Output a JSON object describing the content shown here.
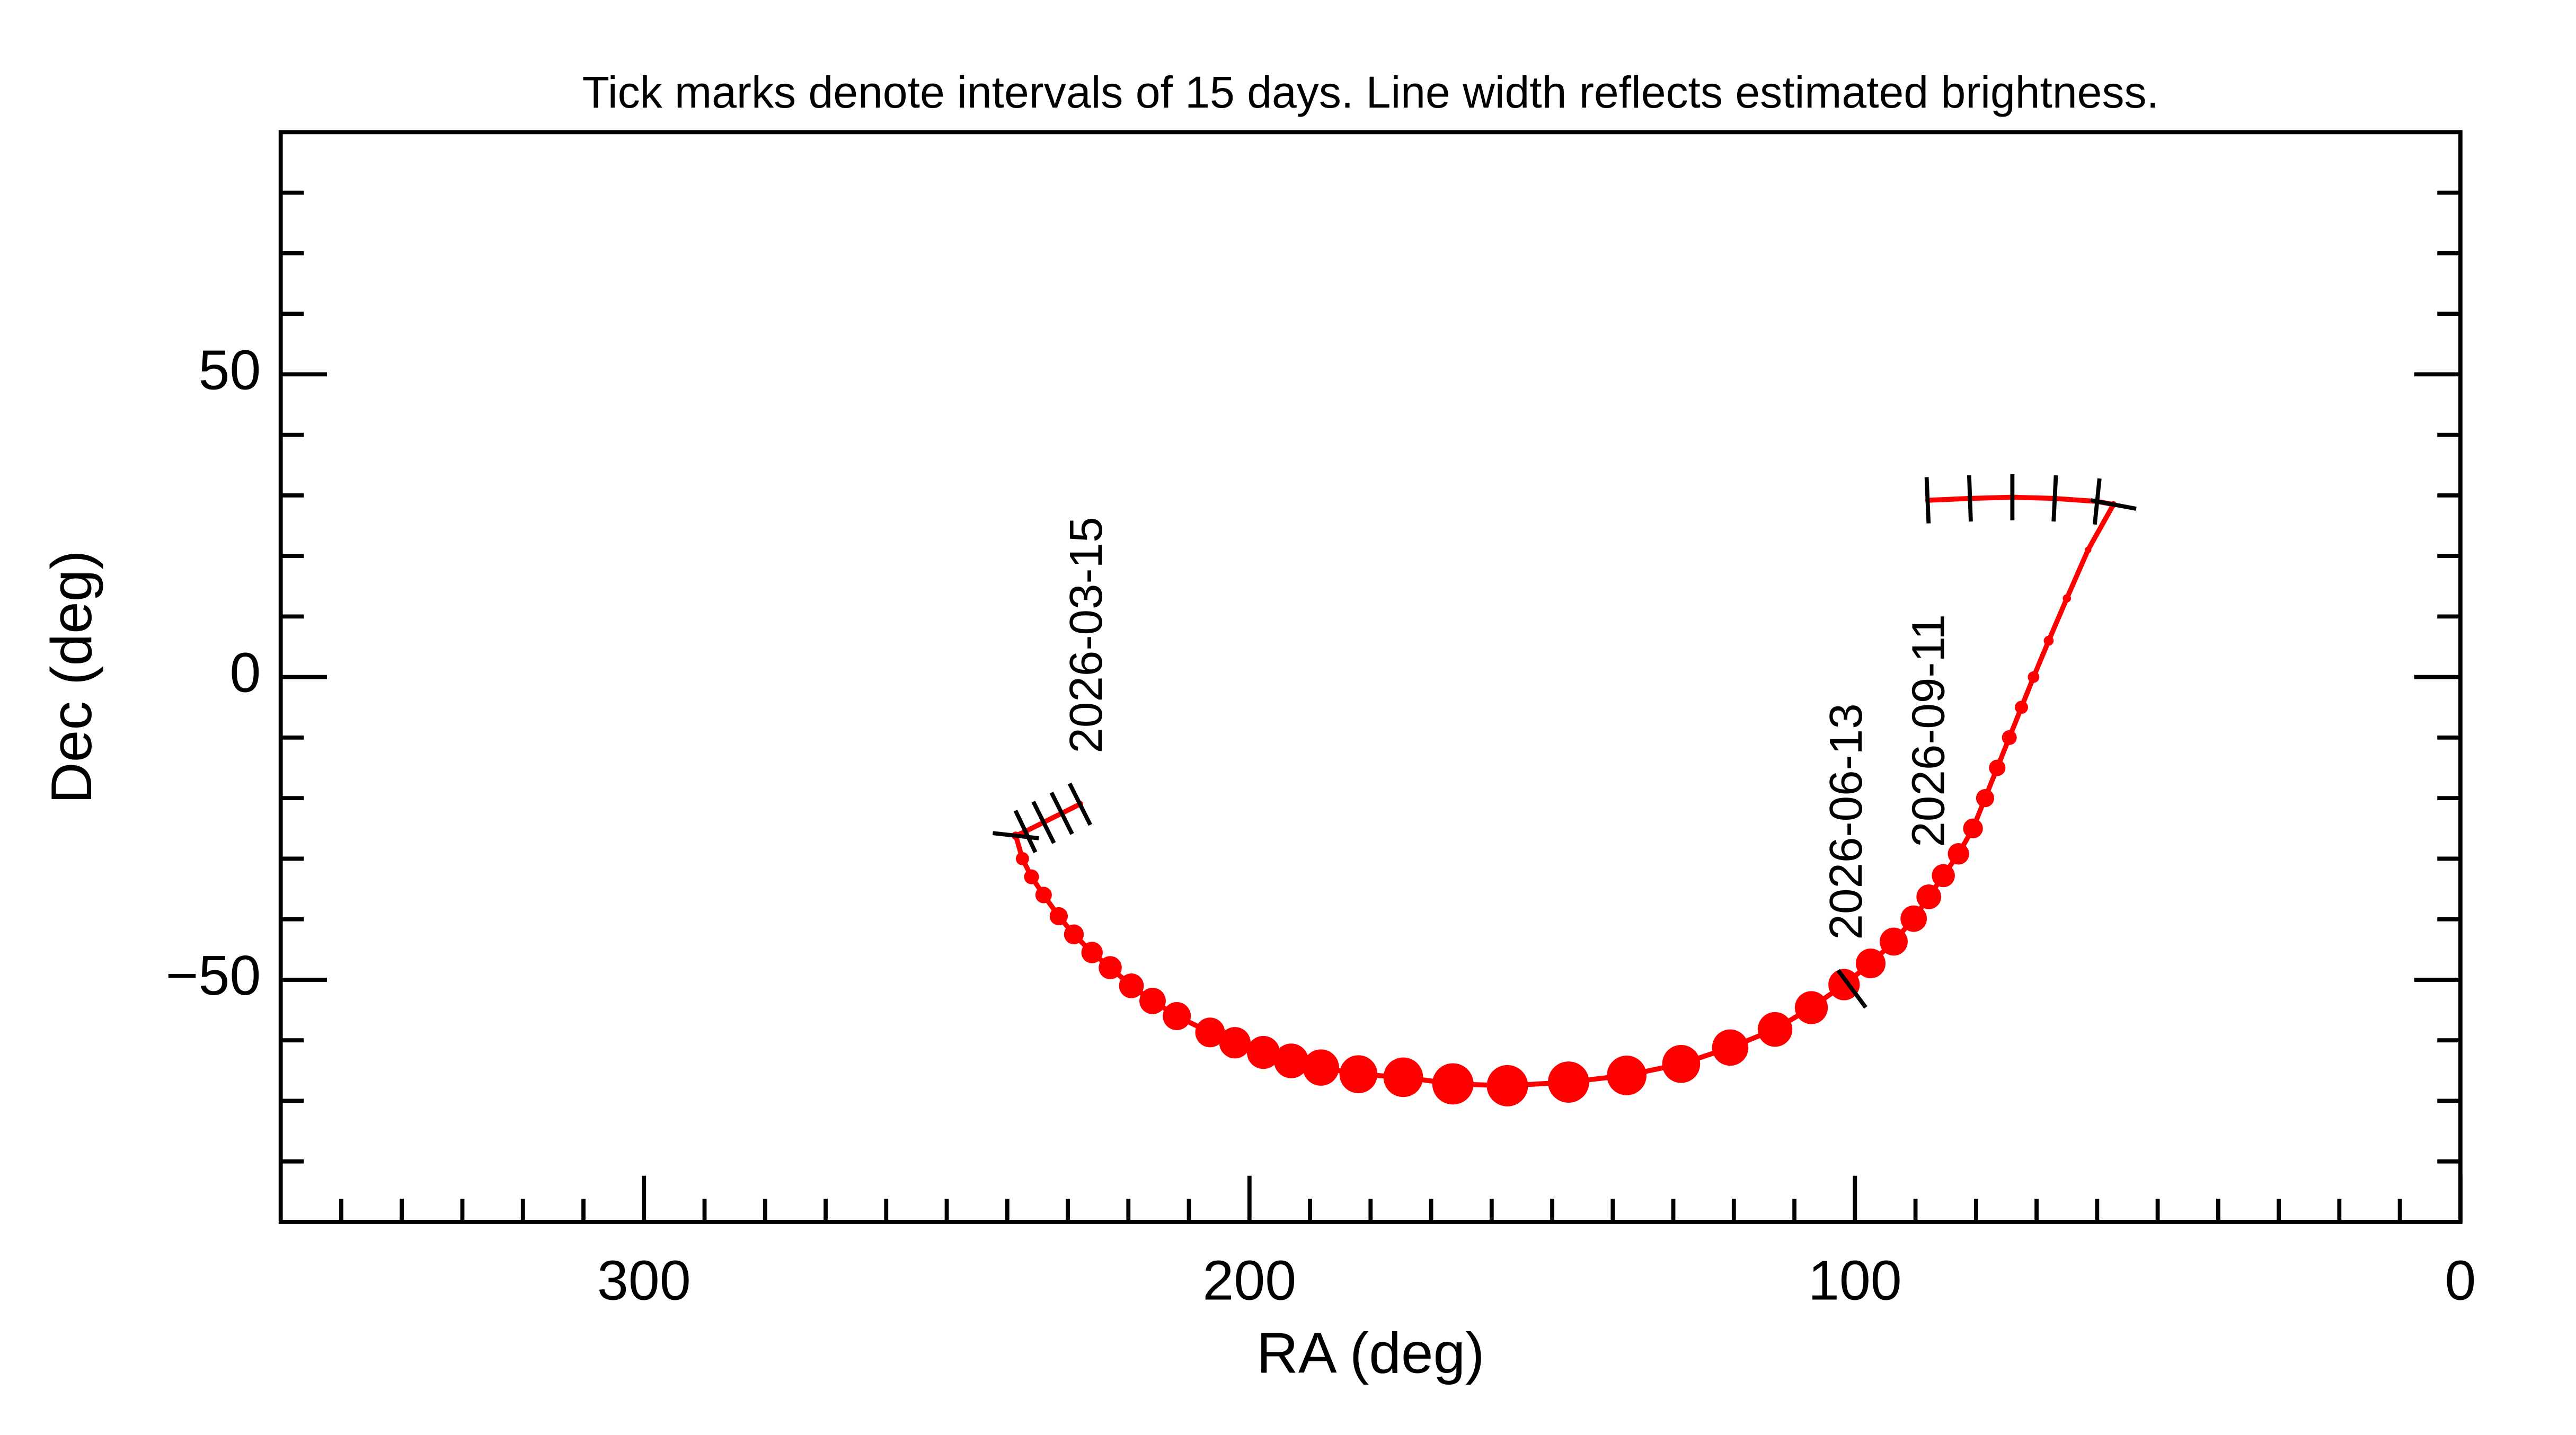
{
  "chart_data": {
    "type": "scatter",
    "title": "Tick marks denote intervals of 15 days.  Line width reflects estimated brightness.",
    "xlabel": "RA (deg)",
    "ylabel": "Dec (deg)",
    "xlim": [
      360,
      0
    ],
    "ylim": [
      -90,
      90
    ],
    "xticks": [
      300,
      200,
      100,
      0
    ],
    "yticks": [
      50,
      0,
      {
        "value": -50,
        "label": "−50"
      }
    ],
    "xminorticks": [
      350,
      340,
      330,
      320,
      310,
      290,
      280,
      270,
      260,
      250,
      240,
      230,
      220,
      210,
      190,
      180,
      170,
      160,
      150,
      140,
      130,
      120,
      110,
      90,
      80,
      70,
      60,
      50,
      40,
      30,
      20,
      10
    ],
    "yminorticks": [
      80,
      70,
      60,
      40,
      30,
      20,
      10,
      -10,
      -20,
      -30,
      -40,
      -60,
      -70,
      -80
    ],
    "series": [
      {
        "color": "#ff0000",
        "x": [
          228,
          231,
          234,
          237,
          238.6,
          237.5,
          236,
          234,
          231.5,
          229,
          226,
          223,
          219.5,
          216,
          212,
          206.5,
          202.4,
          197.7,
          193.1,
          188.2,
          182,
          174.6,
          166.4,
          157.4,
          147.3,
          137.7,
          128.7,
          120.6,
          113.2,
          107.2,
          101.8,
          97.4,
          93.6,
          90.3,
          87.8,
          85.4,
          82.9,
          80.5,
          78.5,
          76.5,
          74.5,
          72.5,
          70.5,
          68,
          65,
          61.5,
          57.3,
          60,
          67,
          74,
          81,
          88
        ],
        "values": [
          -21,
          -22.5,
          -24,
          -25.5,
          -26.2,
          -30,
          -33,
          -36,
          -39.5,
          -42.5,
          -45.5,
          -48,
          -51,
          -53.5,
          -56,
          -58.7,
          -60.4,
          -62,
          -63.4,
          -64.5,
          -65.6,
          -66.1,
          -67.2,
          -67.5,
          -66.9,
          -65.8,
          -63.9,
          -61.2,
          -58.2,
          -54.6,
          -50.8,
          -47.3,
          -43.7,
          -39.9,
          -36.3,
          -32.8,
          -29.2,
          -25,
          -20,
          -15,
          -10,
          -5,
          0,
          6,
          13,
          21,
          28.5,
          29,
          29.5,
          29.7,
          29.5,
          29.2
        ],
        "sizes": [
          2,
          2,
          2,
          2,
          2.5,
          4,
          4.5,
          5,
          5.5,
          6,
          6.5,
          7,
          7.5,
          8,
          8.5,
          9,
          9.5,
          10,
          10.5,
          11,
          11.5,
          12,
          12.5,
          12.5,
          12.5,
          12,
          11.5,
          11,
          10.5,
          10,
          9.5,
          9,
          8.5,
          8,
          7.5,
          7,
          6.5,
          6,
          5.5,
          5,
          4.5,
          4,
          3.5,
          3,
          2.5,
          2,
          2,
          1.5,
          1.5,
          1.5,
          1.5,
          1.5
        ]
      }
    ],
    "date_ticks": {
      "x": [
        228,
        231,
        234,
        237,
        238.6,
        100.5,
        88,
        81,
        74,
        67,
        60,
        57.3
      ],
      "y": [
        -21,
        -22.5,
        -24,
        -25.5,
        -26.2,
        -51.5,
        29.2,
        29.5,
        29.7,
        29.5,
        29,
        28.5
      ]
    },
    "annotations": [
      {
        "text": "2026-03-15",
        "x": 226.4,
        "y": -12.6
      },
      {
        "text": "2026-06-13",
        "x": 100.9,
        "y": -43.4
      },
      {
        "text": "2026-09-11",
        "x": 87.3,
        "y": -28.1
      }
    ]
  }
}
